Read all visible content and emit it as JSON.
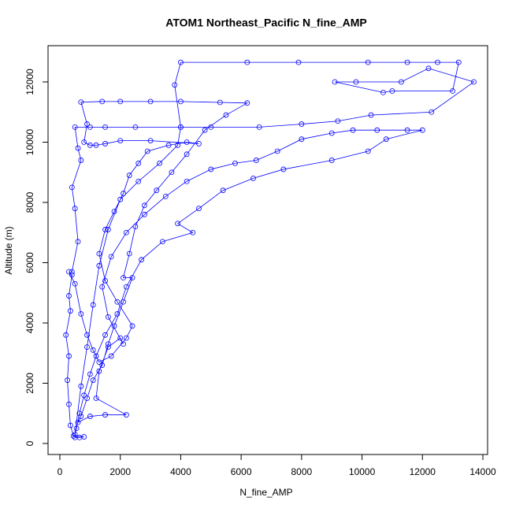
{
  "chart_data": {
    "type": "line",
    "title": "ATOM1 Northeast_Pacific N_fine_AMP",
    "x_label": "N_fine_AMP",
    "y_label": "Altitude (m)",
    "markers": "circle",
    "grid": false,
    "xlim": [
      -391,
      14156
    ],
    "xticks": [
      0,
      2000,
      4000,
      6000,
      8000,
      10000,
      12000,
      14000
    ],
    "ylim": [
      -366,
      13203
    ],
    "yticks": [
      0,
      2000,
      4000,
      6000,
      8000,
      10000,
      12000
    ],
    "x": [
      500,
      650,
      800,
      450,
      350,
      300,
      250,
      300,
      200,
      350,
      300,
      400,
      300,
      500,
      700,
      900,
      1100,
      1300,
      1700,
      2200,
      2400,
      1900,
      1500,
      1300,
      1500,
      1800,
      2100,
      2300,
      2600,
      2900,
      3600,
      4200,
      4600,
      3000,
      2000,
      1500,
      1200,
      1000,
      800,
      900,
      700,
      1400,
      2000,
      3000,
      4000,
      5300,
      6200,
      5500,
      4800,
      4200,
      3700,
      3200,
      2800,
      2500,
      2300,
      2100,
      2400,
      2100,
      1800,
      1600,
      1400,
      1100,
      900,
      700,
      600,
      1000,
      1500,
      2200,
      1200,
      1300,
      1600,
      2000,
      2100,
      1600,
      1400,
      1700,
      2200,
      2800,
      3500,
      4200,
      5000,
      5800,
      6500,
      7200,
      8000,
      9000,
      9700,
      10500,
      11500,
      12000,
      10800,
      10200,
      9000,
      7400,
      6400,
      5400,
      4600,
      3900,
      4400,
      3400,
      2700,
      2200,
      1900,
      1500,
      1200,
      1000,
      800,
      650,
      550,
      500,
      700,
      900,
      1100,
      1300,
      1600,
      2000,
      2600,
      3300,
      3900,
      4000,
      3800,
      4000,
      6200,
      7900,
      10200,
      11500,
      12500,
      13200,
      13000,
      11000,
      10700,
      9100,
      9800,
      11300,
      12200,
      13700,
      12300,
      10300,
      9200,
      8000,
      6600,
      5000,
      4000,
      2500,
      1500,
      1000,
      500,
      600,
      700,
      400,
      500,
      600,
      400
    ],
    "series": [
      {
        "name": "N_fine_AMP",
        "color": "#0000ff",
        "values": [
          200,
          200,
          220,
          250,
          600,
          1300,
          2100,
          2900,
          3600,
          4400,
          4900,
          5600,
          5700,
          5300,
          4300,
          3600,
          3100,
          2700,
          2900,
          3500,
          3900,
          4700,
          5400,
          6300,
          7100,
          7700,
          8300,
          8900,
          9300,
          9700,
          9900,
          10000,
          9950,
          10050,
          10050,
          9950,
          9900,
          9900,
          10000,
          10600,
          11330,
          11350,
          11350,
          11350,
          11350,
          11320,
          11300,
          10900,
          10400,
          9600,
          9000,
          8400,
          7900,
          7200,
          6300,
          5500,
          5500,
          4700,
          3900,
          3300,
          2600,
          2100,
          1500,
          900,
          700,
          900,
          950,
          950,
          1500,
          2400,
          3200,
          3500,
          3300,
          4200,
          5200,
          6200,
          7000,
          7600,
          8200,
          8700,
          9100,
          9300,
          9400,
          9700,
          10100,
          10300,
          10400,
          10400,
          10400,
          10400,
          10100,
          9700,
          9400,
          9100,
          8800,
          8400,
          7800,
          7300,
          7000,
          6700,
          6100,
          5200,
          4300,
          3600,
          2900,
          2300,
          1600,
          1000,
          500,
          300,
          1900,
          3200,
          4600,
          5900,
          7100,
          8100,
          8700,
          9300,
          9900,
          10500,
          11900,
          12650,
          12650,
          12650,
          12650,
          12650,
          12650,
          12650,
          11700,
          11700,
          11650,
          12000,
          12000,
          12000,
          12450,
          12000,
          11000,
          10900,
          10700,
          10600,
          10500,
          10500,
          10500,
          10500,
          10500,
          10500,
          10500,
          9800,
          9400,
          8500,
          7800,
          6700,
          5700
        ]
      }
    ]
  }
}
